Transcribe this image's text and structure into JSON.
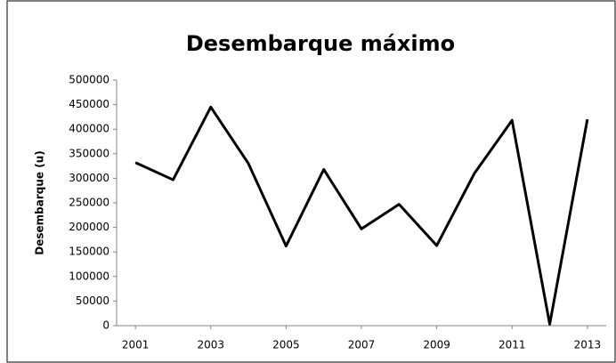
{
  "chart_data": {
    "type": "line",
    "title": "Desembarque máximo",
    "y_label": "Desembarque (u)",
    "x": [
      2001,
      2002,
      2003,
      2004,
      2005,
      2006,
      2007,
      2008,
      2009,
      2010,
      2011,
      2012,
      2013
    ],
    "values": [
      332000,
      297000,
      445000,
      330000,
      162000,
      318000,
      197000,
      247000,
      163000,
      310000,
      418000,
      3000,
      420000
    ],
    "color": "#000000",
    "xlim": [
      2000.5,
      2013.5
    ],
    "xticks": [
      2001,
      2003,
      2005,
      2007,
      2009,
      2011,
      2013
    ],
    "ylim": [
      0,
      500000
    ],
    "yticks": [
      0,
      50000,
      100000,
      150000,
      200000,
      250000,
      300000,
      350000,
      400000,
      450000,
      500000
    ],
    "grid": false
  }
}
